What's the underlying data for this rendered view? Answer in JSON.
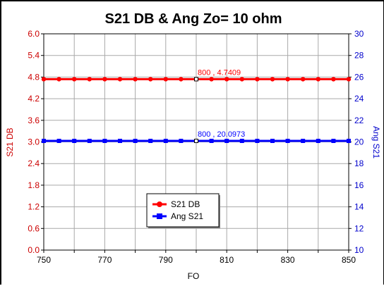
{
  "chart_data": {
    "type": "line",
    "title": "S21 DB & Ang  Zo= 10 ohm",
    "xlabel": "FO",
    "ylabel_left": "S21 DB",
    "ylabel_right": "Ang S21",
    "xlim": [
      750,
      850
    ],
    "ylim_left": [
      0.0,
      6.0
    ],
    "ylim_right": [
      10,
      30
    ],
    "x_ticks": [
      "750",
      "770",
      "790",
      "810",
      "830",
      "850"
    ],
    "y_left_ticks": [
      "0.0",
      "0.6",
      "1.2",
      "1.8",
      "2.4",
      "3.0",
      "3.6",
      "4.2",
      "4.8",
      "5.4",
      "6.0"
    ],
    "y_right_ticks": [
      "10",
      "12",
      "14",
      "16",
      "18",
      "20",
      "22",
      "24",
      "26",
      "28",
      "30"
    ],
    "grid": true,
    "legend_position": "bottom-center",
    "series": [
      {
        "name": "S21 DB",
        "axis": "left",
        "color": "#ff0000",
        "marker": "circle",
        "x": [
          750,
          755,
          760,
          765,
          770,
          775,
          780,
          785,
          790,
          795,
          800,
          805,
          810,
          815,
          820,
          825,
          830,
          835,
          840,
          845,
          850
        ],
        "y": [
          4.7409,
          4.7409,
          4.7409,
          4.7409,
          4.7409,
          4.7409,
          4.7409,
          4.7409,
          4.7409,
          4.7409,
          4.7409,
          4.7409,
          4.7409,
          4.7409,
          4.7409,
          4.7409,
          4.7409,
          4.7409,
          4.7409,
          4.7409,
          4.7409
        ]
      },
      {
        "name": "Ang S21",
        "axis": "right",
        "color": "#0000ff",
        "marker": "square",
        "x": [
          750,
          755,
          760,
          765,
          770,
          775,
          780,
          785,
          790,
          795,
          800,
          805,
          810,
          815,
          820,
          825,
          830,
          835,
          840,
          845,
          850
        ],
        "y": [
          20.0973,
          20.0973,
          20.0973,
          20.0973,
          20.0973,
          20.0973,
          20.0973,
          20.0973,
          20.0973,
          20.0973,
          20.0973,
          20.0973,
          20.0973,
          20.0973,
          20.0973,
          20.0973,
          20.0973,
          20.0973,
          20.0973,
          20.0973,
          20.0973
        ]
      }
    ],
    "annotations": [
      {
        "text": "800 , 4.7409",
        "x": 800,
        "y": 4.7409,
        "axis": "left",
        "color": "#ff0000"
      },
      {
        "text": "800 , 20.0973",
        "x": 800,
        "y": 20.0973,
        "axis": "right",
        "color": "#0000ff"
      }
    ]
  }
}
